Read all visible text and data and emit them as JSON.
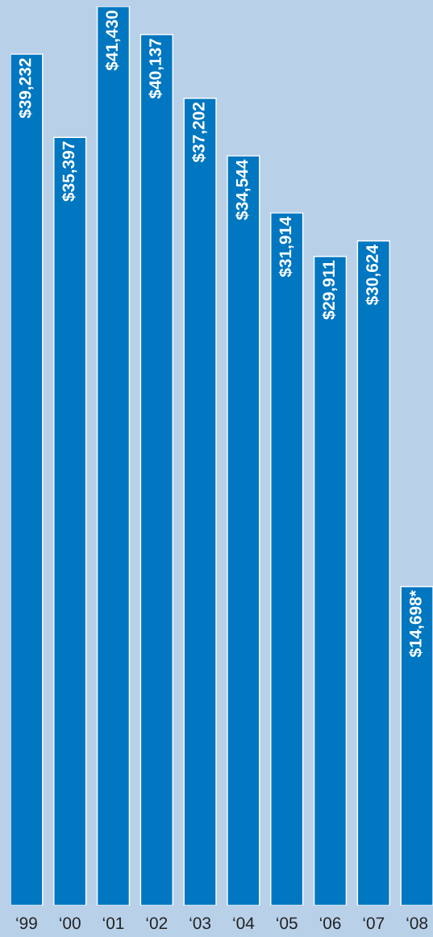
{
  "chart_data": {
    "type": "bar",
    "categories": [
      "‘99",
      "‘00",
      "‘01",
      "‘02",
      "‘03",
      "‘04",
      "‘05",
      "‘06",
      "‘07",
      "‘08"
    ],
    "values": [
      39232,
      35397,
      41430,
      40137,
      37202,
      34544,
      31914,
      29911,
      30624,
      14698
    ],
    "value_labels": [
      "$39,232",
      "$35,397",
      "$41,430",
      "$40,137",
      "$37,202",
      "$34,544",
      "$31,914",
      "$29,911",
      "$30,624",
      "$14,698*"
    ],
    "color": "#0077c0",
    "grid": false,
    "legend": false
  }
}
